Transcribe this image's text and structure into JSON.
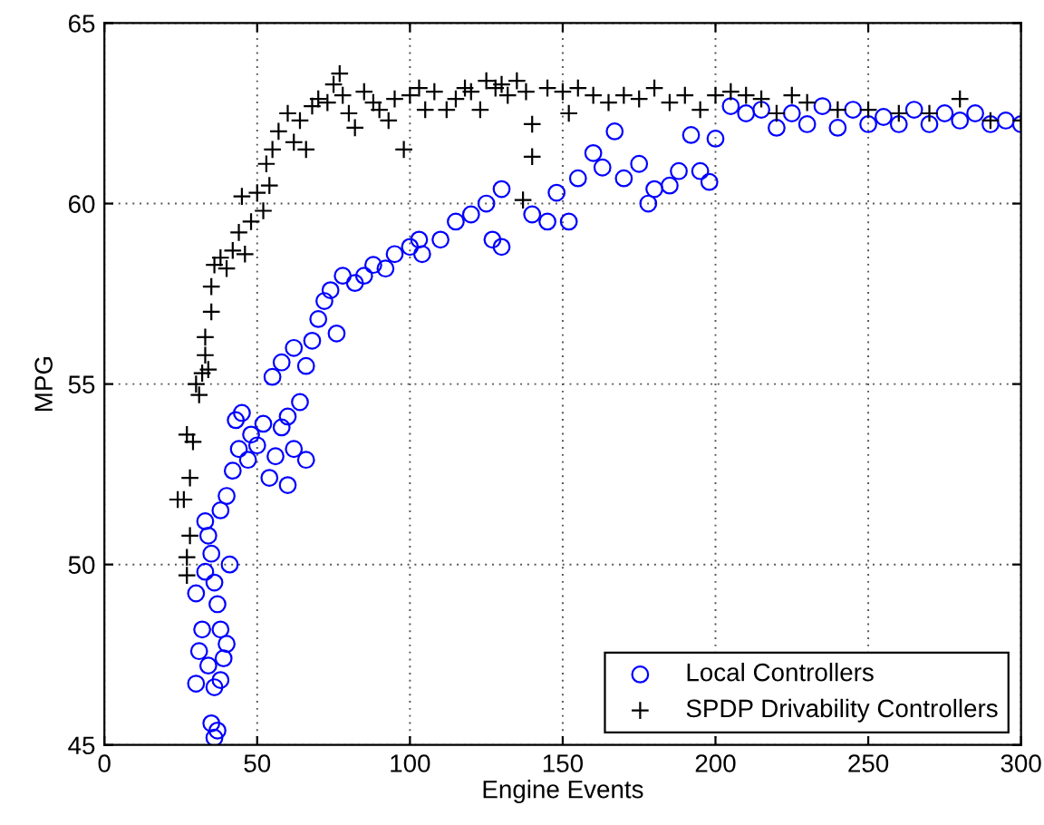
{
  "chart_data": {
    "type": "scatter",
    "xlabel": "Engine Events",
    "ylabel": "MPG",
    "xlim": [
      0,
      300
    ],
    "ylim": [
      45,
      65
    ],
    "xticks": [
      0,
      50,
      100,
      150,
      200,
      250,
      300
    ],
    "yticks": [
      45,
      50,
      55,
      60,
      65
    ],
    "grid": true,
    "legend": "bottom right",
    "series": [
      {
        "name": "Local Controllers",
        "color": "#0000ff",
        "marker": "circle",
        "x": [
          30,
          31,
          32,
          30,
          33,
          35,
          34,
          36,
          37,
          38,
          34,
          38,
          36,
          35,
          36,
          37,
          39,
          40,
          41,
          33,
          38,
          40,
          42,
          44,
          43,
          45,
          47,
          48,
          50,
          52,
          54,
          56,
          58,
          60,
          62,
          64,
          66,
          60,
          55,
          58,
          62,
          66,
          68,
          70,
          72,
          74,
          76,
          78,
          82,
          85,
          88,
          92,
          95,
          100,
          103,
          104,
          110,
          115,
          120,
          125,
          130,
          127,
          130,
          140,
          145,
          148,
          152,
          155,
          160,
          163,
          167,
          170,
          175,
          178,
          180,
          185,
          188,
          195,
          198,
          192,
          200,
          205,
          210,
          215,
          220,
          225,
          230,
          240,
          250,
          255,
          260,
          270,
          275,
          280,
          290,
          300,
          235,
          245,
          265,
          285,
          295
        ],
        "values": [
          46.7,
          47.6,
          48.2,
          49.2,
          49.8,
          50.3,
          50.8,
          49.5,
          48.9,
          48.2,
          47.2,
          46.8,
          46.6,
          45.6,
          45.2,
          45.4,
          47.4,
          47.8,
          50.0,
          51.2,
          51.5,
          51.9,
          52.6,
          53.2,
          54.0,
          54.2,
          52.9,
          53.6,
          53.3,
          53.9,
          52.4,
          53.0,
          53.8,
          54.1,
          53.2,
          54.5,
          52.9,
          52.2,
          55.2,
          55.6,
          56.0,
          55.5,
          56.2,
          56.8,
          57.3,
          57.6,
          56.4,
          58.0,
          57.8,
          58.0,
          58.3,
          58.2,
          58.6,
          58.8,
          59.0,
          58.6,
          59.0,
          59.5,
          59.7,
          60.0,
          60.4,
          59.0,
          58.8,
          59.7,
          59.5,
          60.3,
          59.5,
          60.7,
          61.4,
          61.0,
          62.0,
          60.7,
          61.1,
          60.0,
          60.4,
          60.5,
          60.9,
          60.9,
          60.6,
          61.9,
          61.8,
          62.7,
          62.5,
          62.6,
          62.1,
          62.5,
          62.2,
          62.1,
          62.2,
          62.4,
          62.2,
          62.2,
          62.5,
          62.3,
          62.2,
          62.2,
          62.7,
          62.6,
          62.6,
          62.5,
          62.3
        ]
      },
      {
        "name": "SPDP Drivability Controllers",
        "color": "#000000",
        "marker": "cross",
        "x": [
          27,
          27,
          28,
          26,
          28,
          29,
          30,
          31,
          32,
          33,
          34,
          33,
          35,
          35,
          36,
          38,
          40,
          42,
          44,
          46,
          48,
          45,
          50,
          52,
          54,
          53,
          55,
          57,
          60,
          62,
          64,
          66,
          68,
          70,
          73,
          75,
          77,
          78,
          80,
          82,
          85,
          88,
          90,
          93,
          95,
          98,
          100,
          103,
          105,
          108,
          112,
          115,
          118,
          120,
          123,
          125,
          128,
          130,
          132,
          135,
          138,
          140,
          145,
          150,
          152,
          155,
          160,
          165,
          170,
          175,
          180,
          185,
          190,
          195,
          200,
          205,
          210,
          215,
          220,
          225,
          230,
          240,
          250,
          260,
          270,
          280,
          290,
          300,
          140,
          137,
          27,
          24
        ],
        "values": [
          49.7,
          50.2,
          50.8,
          51.8,
          52.4,
          53.4,
          55.0,
          54.7,
          55.3,
          55.8,
          55.4,
          56.3,
          57.0,
          57.7,
          58.3,
          58.5,
          58.2,
          58.7,
          59.2,
          58.6,
          59.5,
          60.2,
          60.3,
          59.8,
          60.5,
          61.1,
          61.5,
          62.0,
          62.5,
          61.7,
          62.3,
          61.5,
          62.7,
          62.9,
          62.8,
          63.3,
          63.6,
          63.0,
          62.5,
          62.1,
          63.1,
          62.8,
          62.6,
          62.3,
          62.9,
          61.5,
          63.0,
          63.2,
          62.6,
          63.1,
          62.6,
          62.9,
          63.2,
          63.1,
          62.6,
          63.4,
          63.2,
          63.3,
          63.0,
          63.4,
          63.1,
          62.2,
          63.2,
          63.1,
          62.5,
          63.2,
          63.0,
          62.8,
          63.0,
          62.9,
          63.2,
          62.8,
          63.0,
          62.6,
          63.0,
          63.1,
          63.0,
          62.9,
          62.5,
          63.0,
          62.8,
          62.6,
          62.6,
          62.5,
          62.5,
          62.9,
          62.3,
          62.3,
          61.3,
          60.1,
          53.6,
          51.8
        ]
      }
    ]
  }
}
